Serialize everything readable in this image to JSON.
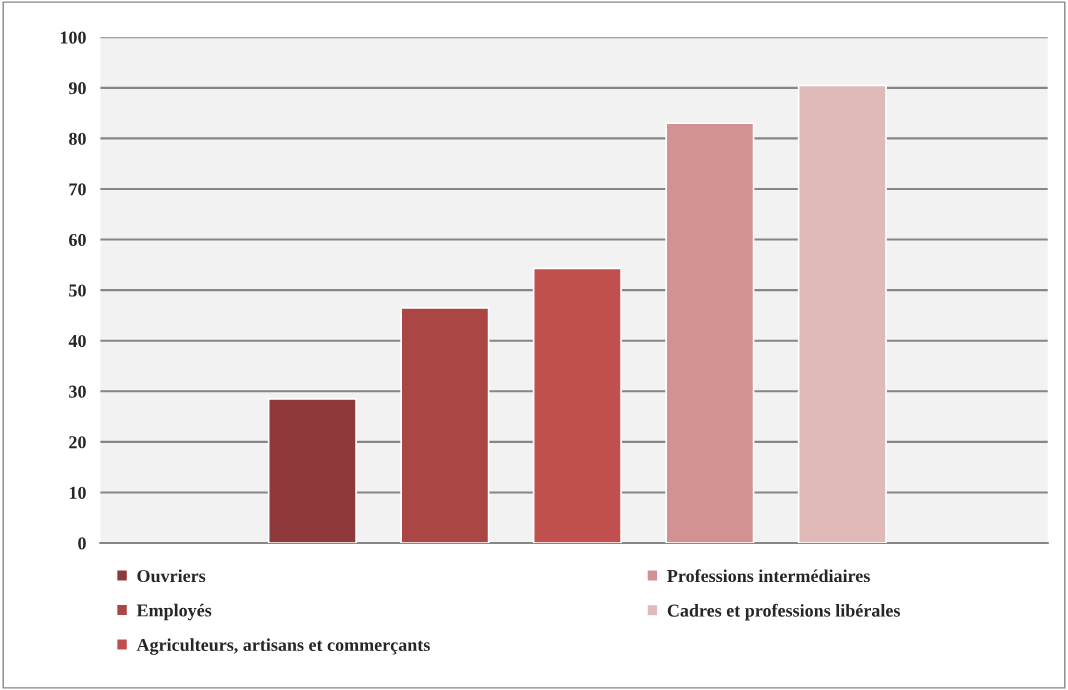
{
  "chart_data": {
    "type": "bar",
    "categories": [
      null
    ],
    "series": [
      {
        "name": "Ouvriers",
        "color": "#8e3a3a",
        "values": [
          28.5
        ]
      },
      {
        "name": "Employés",
        "color": "#aa4644",
        "values": [
          46.5
        ]
      },
      {
        "name": "Agriculteurs, artisans et commerçants",
        "color": "#c0504d",
        "values": [
          54.3
        ]
      },
      {
        "name": "Professions intermédiaires",
        "color": "#d39292",
        "values": [
          83
        ]
      },
      {
        "name": "Cadres et professions libérales",
        "color": "#e0b9b9",
        "values": [
          90.5
        ]
      }
    ],
    "ylim": [
      0,
      100
    ],
    "yticks": [
      0,
      10,
      20,
      30,
      40,
      50,
      60,
      70,
      80,
      90,
      100
    ],
    "grid": "y",
    "legend": "bottom"
  }
}
